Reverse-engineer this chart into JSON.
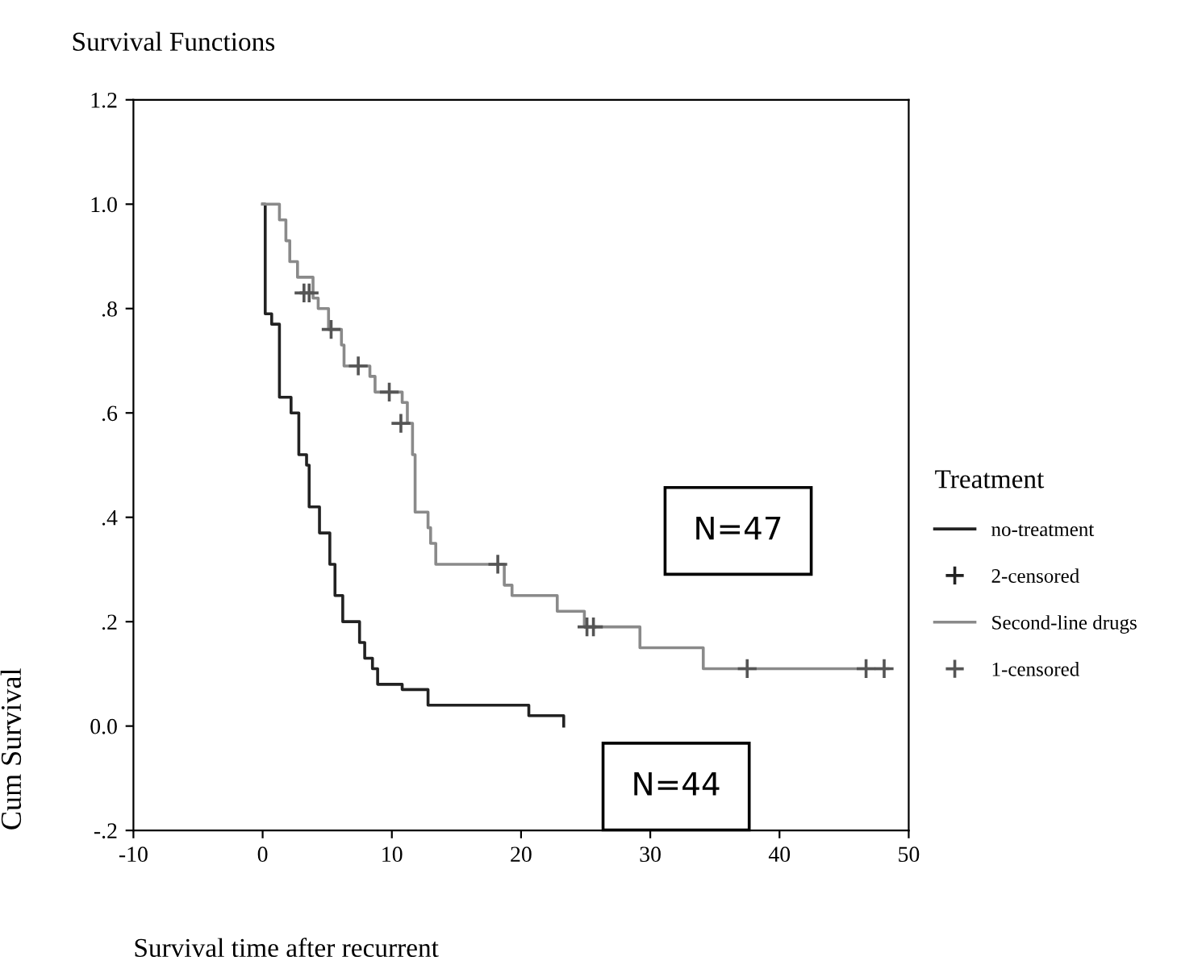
{
  "chart_data": {
    "type": "step",
    "title": "Survival Functions",
    "xlabel": "Survival time after recurrent",
    "ylabel": "Cum Survival",
    "legend_title": "Treatment",
    "legend": "right",
    "grid": false,
    "xlim": [
      -10,
      50
    ],
    "xticks": [
      -10,
      0,
      10,
      20,
      30,
      40,
      50
    ],
    "ylim": [
      -0.2,
      1.2
    ],
    "yticks": [
      {
        "value": -0.2,
        "label": "-.2"
      },
      {
        "value": 0.0,
        "label": "0.0"
      },
      {
        "value": 0.2,
        "label": ".2"
      },
      {
        "value": 0.4,
        "label": ".4"
      },
      {
        "value": 0.6,
        "label": ".6"
      },
      {
        "value": 0.8,
        "label": ".8"
      },
      {
        "value": 1.0,
        "label": "1.0"
      },
      {
        "value": 1.2,
        "label": "1.2"
      }
    ],
    "series": [
      {
        "name": "no-treatment",
        "color": "#222222",
        "marker": "none",
        "x": [
          0,
          0.2,
          0.7,
          1.3,
          2.2,
          2.8,
          3.4,
          3.6,
          4.4,
          5.2,
          5.6,
          6.2,
          7.5,
          7.9,
          8.5,
          8.9,
          10.8,
          12.8,
          20.6,
          23.3
        ],
        "values": [
          1.0,
          0.79,
          0.77,
          0.63,
          0.6,
          0.52,
          0.5,
          0.42,
          0.37,
          0.31,
          0.25,
          0.2,
          0.16,
          0.13,
          0.11,
          0.08,
          0.07,
          0.04,
          0.02,
          0.0
        ]
      },
      {
        "name": "2-censored",
        "type": "scatter",
        "color": "#222222",
        "marker": "cross"
      },
      {
        "name": "Second-line drugs",
        "color": "#8a8a8a",
        "marker": "none",
        "x": [
          0,
          1.3,
          1.8,
          2.1,
          2.7,
          3.9,
          4.3,
          5.1,
          6.1,
          6.3,
          8.3,
          8.7,
          10.8,
          11.2,
          11.6,
          11.8,
          12.8,
          13.0,
          13.4,
          18.7,
          19.3,
          22.8,
          24.9,
          29.2,
          34.1,
          48.4
        ],
        "values": [
          1.0,
          0.97,
          0.93,
          0.89,
          0.86,
          0.82,
          0.8,
          0.76,
          0.73,
          0.69,
          0.67,
          0.64,
          0.62,
          0.58,
          0.52,
          0.41,
          0.38,
          0.35,
          0.31,
          0.27,
          0.25,
          0.22,
          0.19,
          0.15,
          0.11,
          0.11
        ]
      },
      {
        "name": "1-censored",
        "type": "scatter",
        "color": "#555555",
        "marker": "cross",
        "x": [
          3.2,
          3.6,
          5.3,
          7.4,
          9.8,
          10.7,
          18.2,
          25.1,
          25.6,
          37.5,
          46.7,
          48.1
        ],
        "values": [
          0.83,
          0.83,
          0.76,
          0.69,
          0.64,
          0.58,
          0.31,
          0.19,
          0.19,
          0.11,
          0.11,
          0.11
        ]
      }
    ],
    "annotations": [
      "N=47",
      "N=44"
    ]
  }
}
